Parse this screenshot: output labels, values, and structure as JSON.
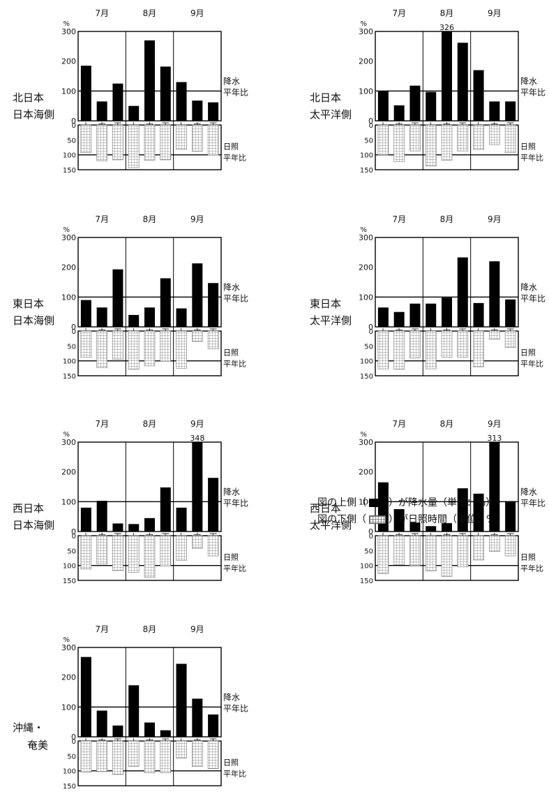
{
  "chart_data": [
    {
      "type": "bar",
      "title": "北日本\n日本海側",
      "months": [
        "7月",
        "8月",
        "9月"
      ],
      "categories": [
        "上",
        "中",
        "下",
        "上",
        "中",
        "下",
        "上",
        "中",
        "下"
      ],
      "precip_label": "降水\n平年比",
      "sun_label": "日照\n平年比",
      "precip_ticks": [
        "300",
        "200",
        "100",
        "0"
      ],
      "sun_ticks": [
        "0",
        "50",
        "100",
        "150"
      ],
      "unit": "%",
      "precip_ylim": [
        0,
        300
      ],
      "sun_ylim": [
        0,
        150
      ],
      "precipitation": [
        185,
        65,
        125,
        50,
        270,
        182,
        130,
        68,
        62
      ],
      "sunshine": [
        93,
        120,
        117,
        143,
        118,
        117,
        82,
        88,
        101
      ],
      "annotations": []
    },
    {
      "type": "bar",
      "title": "北日本\n太平洋側",
      "months": [
        "7月",
        "8月",
        "9月"
      ],
      "categories": [
        "上",
        "中",
        "下",
        "上",
        "中",
        "下",
        "上",
        "中",
        "下"
      ],
      "precip_label": "降水\n平年比",
      "sun_label": "日照\n平年比",
      "precip_ticks": [
        "300",
        "200",
        "100",
        "0"
      ],
      "sun_ticks": [
        "0",
        "50",
        "100",
        "150"
      ],
      "unit": "%",
      "precip_ylim": [
        0,
        300
      ],
      "sun_ylim": [
        0,
        150
      ],
      "precipitation": [
        100,
        52,
        118,
        97,
        326,
        262,
        170,
        65,
        65
      ],
      "sunshine": [
        100,
        123,
        87,
        138,
        118,
        87,
        82,
        66,
        93
      ],
      "annotations": [
        {
          "index": 4,
          "text": "326"
        }
      ]
    },
    {
      "type": "bar",
      "title": "東日本\n日本海側",
      "months": [
        "7月",
        "8月",
        "9月"
      ],
      "categories": [
        "上",
        "中",
        "下",
        "上",
        "中",
        "下",
        "上",
        "中",
        "下"
      ],
      "precip_label": "降水\n平年比",
      "sun_label": "日照\n平年比",
      "precip_ticks": [
        "300",
        "200",
        "100",
        "0"
      ],
      "sun_ticks": [
        "0",
        "50",
        "100",
        "150"
      ],
      "unit": "%",
      "precip_ylim": [
        0,
        300
      ],
      "sun_ylim": [
        0,
        150
      ],
      "precipitation": [
        90,
        65,
        193,
        40,
        65,
        163,
        62,
        213,
        147
      ],
      "sunshine": [
        88,
        123,
        95,
        128,
        117,
        102,
        125,
        35,
        60
      ],
      "annotations": []
    },
    {
      "type": "bar",
      "title": "東日本\n太平洋側",
      "months": [
        "7月",
        "8月",
        "9月"
      ],
      "categories": [
        "上",
        "中",
        "下",
        "上",
        "中",
        "下",
        "上",
        "中",
        "下"
      ],
      "precip_label": "降水\n平年比",
      "sun_label": "日照\n平年比",
      "precip_ticks": [
        "300",
        "200",
        "100",
        "0"
      ],
      "sun_ticks": [
        "0",
        "50",
        "100",
        "150"
      ],
      "unit": "%",
      "precip_ylim": [
        0,
        300
      ],
      "sun_ylim": [
        0,
        150
      ],
      "precipitation": [
        65,
        50,
        78,
        78,
        98,
        233,
        80,
        220,
        92
      ],
      "sunshine": [
        127,
        128,
        90,
        127,
        88,
        88,
        120,
        28,
        55
      ],
      "annotations": []
    },
    {
      "type": "bar",
      "title": "西日本\n日本海側",
      "months": [
        "7月",
        "8月",
        "9月"
      ],
      "categories": [
        "上",
        "中",
        "下",
        "上",
        "中",
        "下",
        "上",
        "中",
        "下"
      ],
      "precip_label": "降水\n平年比",
      "sun_label": "日照\n平年比",
      "precip_ticks": [
        "300",
        "200",
        "100",
        "0"
      ],
      "sun_ticks": [
        "0",
        "50",
        "100",
        "150"
      ],
      "unit": "%",
      "precip_ylim": [
        0,
        300
      ],
      "sun_ylim": [
        0,
        150
      ],
      "precipitation": [
        80,
        103,
        27,
        25,
        45,
        148,
        80,
        348,
        180
      ],
      "sunshine": [
        112,
        95,
        117,
        123,
        140,
        102,
        83,
        42,
        68
      ],
      "annotations": [
        {
          "index": 7,
          "text": "348"
        }
      ]
    },
    {
      "type": "bar",
      "title": "西日本\n太平洋側",
      "months": [
        "7月",
        "8月",
        "9月"
      ],
      "categories": [
        "上",
        "中",
        "下",
        "上",
        "中",
        "下",
        "上",
        "中",
        "下"
      ],
      "precip_label": "降水\n平年比",
      "sun_label": "日照\n平年比",
      "precip_ticks": [
        "300",
        "200",
        "100",
        "0"
      ],
      "sun_ticks": [
        "0",
        "50",
        "100",
        "150"
      ],
      "unit": "%",
      "precip_ylim": [
        0,
        300
      ],
      "sun_ylim": [
        0,
        150
      ],
      "precipitation": [
        165,
        75,
        30,
        18,
        28,
        145,
        127,
        313,
        102
      ],
      "sunshine": [
        127,
        97,
        100,
        118,
        137,
        105,
        82,
        53,
        68
      ],
      "annotations": [
        {
          "index": 7,
          "text": "313"
        }
      ]
    },
    {
      "type": "bar",
      "title": "沖縄・\n奄美",
      "months": [
        "7月",
        "8月",
        "9月"
      ],
      "categories": [
        "上",
        "中",
        "下",
        "上",
        "中",
        "下",
        "上",
        "中",
        "下"
      ],
      "precip_label": "降水\n平年比",
      "sun_label": "日照\n平年比",
      "precip_ticks": [
        "300",
        "200",
        "100",
        "0"
      ],
      "sun_ticks": [
        "0",
        "50",
        "100",
        "150"
      ],
      "unit": "%",
      "precip_ylim": [
        0,
        300
      ],
      "sun_ylim": [
        0,
        150
      ],
      "precipitation": [
        268,
        88,
        38,
        173,
        48,
        22,
        245,
        128,
        75
      ],
      "sunshine": [
        105,
        103,
        112,
        85,
        107,
        107,
        57,
        85,
        93
      ],
      "annotations": []
    }
  ],
  "legend": {
    "line1_prefix": "図の上側（",
    "line1_suffix": "）が降水量（単位：%）",
    "line2_prefix": "図の下側（",
    "line2_suffix": "）が日照時間（単位：%）"
  },
  "colors": {
    "bar": "#000000",
    "hatch": "#888888",
    "axis": "#000000",
    "text": "#111111"
  }
}
